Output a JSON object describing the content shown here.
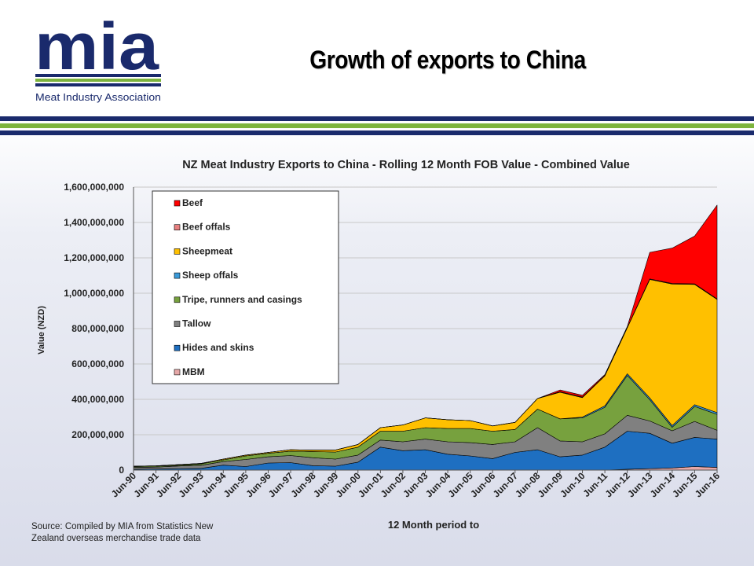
{
  "header": {
    "logo_text": "mia",
    "logo_subtitle": "Meat Industry Association",
    "title": "Growth of exports to China"
  },
  "colors": {
    "navy": "#1a2a6c",
    "green": "#7db43d"
  },
  "source_note": "Source: Compiled by MIA from Statistics New Zealand overseas merchandise trade data",
  "chart_data": {
    "type": "area",
    "stacked": true,
    "title": "NZ Meat Industry Exports to China - Rolling 12 Month FOB Value - Combined Value",
    "xlabel": "12 Month period to",
    "ylabel": "Value (NZD)",
    "ylim": [
      0,
      1600000000
    ],
    "yticks": [
      0,
      200000000,
      400000000,
      600000000,
      800000000,
      1000000000,
      1200000000,
      1400000000,
      1600000000
    ],
    "ytick_labels": [
      "0",
      "200,000,000",
      "400,000,000",
      "600,000,000",
      "800,000,000",
      "1,000,000,000",
      "1,200,000,000",
      "1,400,000,000",
      "1,600,000,000"
    ],
    "grid": true,
    "legend": "top-left",
    "categories": [
      "Jun-90",
      "Jun-91",
      "Jun-92",
      "Jun-93",
      "Jun-94",
      "Jun-95",
      "Jun-96",
      "Jun-97",
      "Jun-98",
      "Jun-99",
      "Jun-00",
      "Jun-01",
      "Jun-02",
      "Jun-03",
      "Jun-04",
      "Jun-05",
      "Jun-06",
      "Jun-07",
      "Jun-08",
      "Jun-09",
      "Jun-10",
      "Jun-11",
      "Jun-12",
      "Jun-13",
      "Jun-14",
      "Jun-15",
      "Jun-16"
    ],
    "x": [
      "Jun-90",
      "Jun-91",
      "Jun-92",
      "Jun-93",
      "Jun-94",
      "Jun-95",
      "Jun-96",
      "Jun-97",
      "Jun-98",
      "Jun-99",
      "Jun-00",
      "Jun-01",
      "Jun-02",
      "Jun-03",
      "Jun-04",
      "Jun-05",
      "Jun-06",
      "Jun-07",
      "Jun-08",
      "Jun-09",
      "Jun-10",
      "Jun-11",
      "Jun-12",
      "Jun-13",
      "Jun-14",
      "Jun-15",
      "Jun-16"
    ],
    "series": [
      {
        "name": "MBM",
        "color": "#e6a8a8",
        "values": [
          0,
          0,
          0,
          0,
          0,
          0,
          0,
          0,
          0,
          0,
          0,
          0,
          0,
          0,
          0,
          0,
          0,
          0,
          0,
          0,
          0,
          0,
          5000000,
          8000000,
          12000000,
          20000000,
          15000000
        ]
      },
      {
        "name": "Hides and skins",
        "color": "#1e6fc1",
        "values": [
          5000000,
          6000000,
          8000000,
          10000000,
          28000000,
          20000000,
          40000000,
          42000000,
          25000000,
          22000000,
          45000000,
          130000000,
          110000000,
          115000000,
          90000000,
          80000000,
          65000000,
          100000000,
          115000000,
          75000000,
          85000000,
          130000000,
          215000000,
          200000000,
          140000000,
          165000000,
          160000000
        ]
      },
      {
        "name": "Tallow",
        "color": "#808080",
        "values": [
          10000000,
          11000000,
          15000000,
          17000000,
          20000000,
          40000000,
          35000000,
          40000000,
          45000000,
          40000000,
          40000000,
          40000000,
          50000000,
          60000000,
          70000000,
          75000000,
          80000000,
          60000000,
          125000000,
          90000000,
          75000000,
          75000000,
          90000000,
          70000000,
          70000000,
          90000000,
          50000000
        ]
      },
      {
        "name": "Tripe, runners and casings",
        "color": "#77a13e",
        "values": [
          5000000,
          5000000,
          5000000,
          8000000,
          10000000,
          20000000,
          20000000,
          25000000,
          35000000,
          40000000,
          45000000,
          50000000,
          60000000,
          65000000,
          75000000,
          80000000,
          75000000,
          70000000,
          105000000,
          125000000,
          135000000,
          150000000,
          225000000,
          120000000,
          20000000,
          85000000,
          90000000
        ]
      },
      {
        "name": "Sheep offals",
        "color": "#3a9ad9",
        "values": [
          0,
          0,
          0,
          0,
          0,
          0,
          0,
          0,
          0,
          0,
          0,
          0,
          0,
          0,
          0,
          0,
          0,
          0,
          0,
          0,
          5000000,
          8000000,
          10000000,
          10000000,
          10000000,
          10000000,
          10000000
        ]
      },
      {
        "name": "Sheepmeat",
        "color": "#ffc000",
        "values": [
          2000000,
          2000000,
          3000000,
          3000000,
          4000000,
          5000000,
          5000000,
          8000000,
          8000000,
          12000000,
          15000000,
          20000000,
          35000000,
          55000000,
          50000000,
          45000000,
          30000000,
          40000000,
          60000000,
          150000000,
          110000000,
          170000000,
          260000000,
          670000000,
          800000000,
          680000000,
          640000000
        ]
      },
      {
        "name": "Beef offals",
        "color": "#e88080",
        "values": [
          0,
          0,
          0,
          0,
          0,
          0,
          0,
          0,
          0,
          0,
          0,
          0,
          0,
          0,
          0,
          0,
          0,
          0,
          0,
          3000000,
          3000000,
          2000000,
          2000000,
          3000000,
          3000000,
          3000000,
          3000000
        ]
      },
      {
        "name": "Beef",
        "color": "#ff0000",
        "values": [
          0,
          0,
          0,
          0,
          0,
          0,
          0,
          0,
          0,
          0,
          0,
          0,
          0,
          0,
          0,
          0,
          0,
          0,
          0,
          10000000,
          10000000,
          5000000,
          5000000,
          150000000,
          200000000,
          270000000,
          530000000
        ]
      }
    ]
  }
}
